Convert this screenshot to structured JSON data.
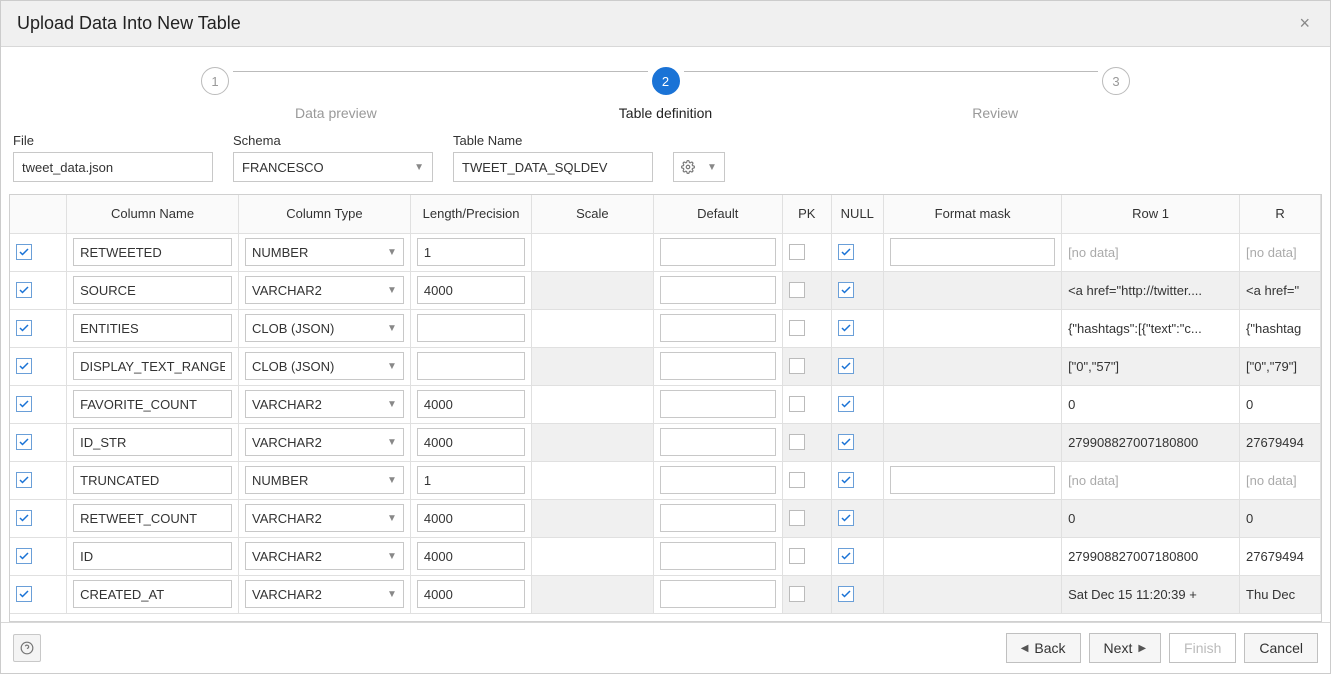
{
  "dialog": {
    "title": "Upload Data Into New Table",
    "close_label": "×"
  },
  "stepper": {
    "steps": [
      {
        "num": "1",
        "label": "Data preview",
        "active": false
      },
      {
        "num": "2",
        "label": "Table definition",
        "active": true
      },
      {
        "num": "3",
        "label": "Review",
        "active": false
      }
    ]
  },
  "form": {
    "file_label": "File",
    "file_value": "tweet_data.json",
    "schema_label": "Schema",
    "schema_value": "FRANCESCO",
    "table_label": "Table Name",
    "table_value": "TWEET_DATA_SQLDEV"
  },
  "grid": {
    "headers": {
      "check": "",
      "name": "Column Name",
      "type": "Column Type",
      "len": "Length/Precision",
      "scale": "Scale",
      "default": "Default",
      "pk": "PK",
      "null": "NULL",
      "mask": "Format mask",
      "row1": "Row 1",
      "row2": "R"
    },
    "nodata": "[no data]",
    "rows": [
      {
        "checked": true,
        "name": "RETWEETED",
        "type": "NUMBER",
        "len": "1",
        "scale": "",
        "default": "",
        "pk": false,
        "null": true,
        "mask": "",
        "mask_editable": true,
        "row1": "[no data]",
        "row1_nodata": true,
        "row2": "[no data]",
        "row2_nodata": true
      },
      {
        "checked": true,
        "name": "SOURCE",
        "type": "VARCHAR2",
        "len": "4000",
        "scale": "",
        "default": "",
        "pk": false,
        "null": true,
        "mask": "",
        "mask_editable": false,
        "row1": "<a href=\"http://twitter....",
        "row1_nodata": false,
        "row2": "<a href=\"",
        "row2_nodata": false
      },
      {
        "checked": true,
        "name": "ENTITIES",
        "type": "CLOB (JSON)",
        "len": "",
        "scale": "",
        "default": "",
        "pk": false,
        "null": true,
        "mask": "",
        "mask_editable": false,
        "row1": "{\"hashtags\":[{\"text\":\"c...",
        "row1_nodata": false,
        "row2": "{\"hashtag",
        "row2_nodata": false
      },
      {
        "checked": true,
        "name": "DISPLAY_TEXT_RANGE",
        "type": "CLOB (JSON)",
        "len": "",
        "scale": "",
        "default": "",
        "pk": false,
        "null": true,
        "mask": "",
        "mask_editable": false,
        "row1": "[\"0\",\"57\"]",
        "row1_nodata": false,
        "row2": "[\"0\",\"79\"]",
        "row2_nodata": false
      },
      {
        "checked": true,
        "name": "FAVORITE_COUNT",
        "type": "VARCHAR2",
        "len": "4000",
        "scale": "",
        "default": "",
        "pk": false,
        "null": true,
        "mask": "",
        "mask_editable": false,
        "row1": "0",
        "row1_nodata": false,
        "row2": "0",
        "row2_nodata": false
      },
      {
        "checked": true,
        "name": "ID_STR",
        "type": "VARCHAR2",
        "len": "4000",
        "scale": "",
        "default": "",
        "pk": false,
        "null": true,
        "mask": "",
        "mask_editable": false,
        "row1": "279908827007180800",
        "row1_nodata": false,
        "row2": "27679494",
        "row2_nodata": false
      },
      {
        "checked": true,
        "name": "TRUNCATED",
        "type": "NUMBER",
        "len": "1",
        "scale": "",
        "default": "",
        "pk": false,
        "null": true,
        "mask": "",
        "mask_editable": true,
        "row1": "[no data]",
        "row1_nodata": true,
        "row2": "[no data]",
        "row2_nodata": true
      },
      {
        "checked": true,
        "name": "RETWEET_COUNT",
        "type": "VARCHAR2",
        "len": "4000",
        "scale": "",
        "default": "",
        "pk": false,
        "null": true,
        "mask": "",
        "mask_editable": false,
        "row1": "0",
        "row1_nodata": false,
        "row2": "0",
        "row2_nodata": false
      },
      {
        "checked": true,
        "name": "ID",
        "type": "VARCHAR2",
        "len": "4000",
        "scale": "",
        "default": "",
        "pk": false,
        "null": true,
        "mask": "",
        "mask_editable": false,
        "row1": "279908827007180800",
        "row1_nodata": false,
        "row2": "27679494",
        "row2_nodata": false
      },
      {
        "checked": true,
        "name": "CREATED_AT",
        "type": "VARCHAR2",
        "len": "4000",
        "scale": "",
        "default": "",
        "pk": false,
        "null": true,
        "mask": "",
        "mask_editable": false,
        "row1": "Sat Dec 15 11:20:39 +",
        "row1_nodata": false,
        "row2": "Thu Dec",
        "row2_nodata": false
      }
    ]
  },
  "footer": {
    "help": "?",
    "back": "Back",
    "next": "Next",
    "finish": "Finish",
    "cancel": "Cancel"
  },
  "colors": {
    "accent": "#1a73d6",
    "alt_row": "#f0f0f0",
    "border": "#c8c8c8"
  }
}
